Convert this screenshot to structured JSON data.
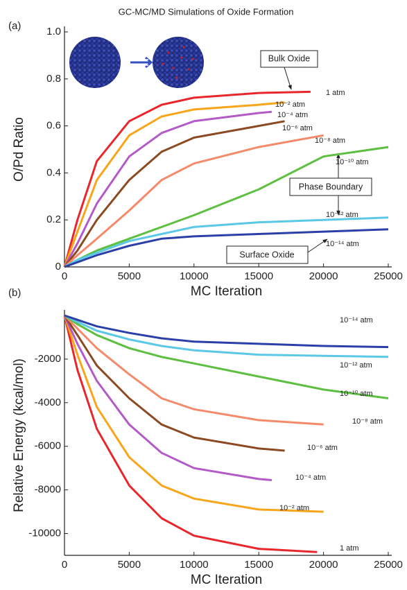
{
  "chart_data": [
    {
      "type": "line",
      "title": "GC-MC/MD Simulations of Oxide Formation",
      "panel_label": "(a)",
      "xlabel": "MC Iteration",
      "ylabel": "O/Pd Ratio",
      "xlim": [
        0,
        25000
      ],
      "xticks": [
        0,
        5000,
        10000,
        15000,
        20000,
        25000
      ],
      "ylim": [
        0,
        1
      ],
      "yticks": [
        0,
        0.2,
        0.4,
        0.6,
        0.8,
        {
          "value": 1,
          "label": "1.0"
        }
      ],
      "annotations": [
        "Bulk Oxide",
        "Phase Boundary",
        "Surface Oxide"
      ],
      "series": [
        {
          "name": "1 atm",
          "color": "#e8262b",
          "x": [
            0,
            1000,
            2500,
            5000,
            7500,
            10000,
            15000,
            19000
          ],
          "values": [
            0,
            0.2,
            0.45,
            0.62,
            0.69,
            0.72,
            0.74,
            0.745
          ]
        },
        {
          "name": "10⁻² atm",
          "color": "#f9a51a",
          "x": [
            0,
            1000,
            2500,
            5000,
            7500,
            10000,
            15000,
            17000
          ],
          "values": [
            0,
            0.15,
            0.37,
            0.56,
            0.64,
            0.67,
            0.69,
            0.7
          ]
        },
        {
          "name": "10⁻⁴ atm",
          "color": "#b45ac8",
          "x": [
            0,
            1000,
            2500,
            5000,
            7500,
            10000,
            15000,
            16000
          ],
          "values": [
            0,
            0.1,
            0.27,
            0.47,
            0.57,
            0.62,
            0.655,
            0.66
          ]
        },
        {
          "name": "10⁻⁶ atm",
          "color": "#8b4a22",
          "x": [
            0,
            1000,
            2500,
            5000,
            7500,
            10000,
            15000,
            17000
          ],
          "values": [
            0,
            0.07,
            0.2,
            0.37,
            0.49,
            0.55,
            0.6,
            0.62
          ]
        },
        {
          "name": "10⁻⁸ atm",
          "color": "#f58a6a",
          "x": [
            0,
            1000,
            2500,
            5000,
            7500,
            10000,
            15000,
            20000
          ],
          "values": [
            0,
            0.05,
            0.12,
            0.24,
            0.37,
            0.44,
            0.51,
            0.56
          ]
        },
        {
          "name": "10⁻¹⁰ atm",
          "color": "#5cbf40",
          "x": [
            0,
            1000,
            2500,
            5000,
            7500,
            10000,
            15000,
            20000,
            25000
          ],
          "values": [
            0,
            0.03,
            0.07,
            0.12,
            0.17,
            0.22,
            0.33,
            0.47,
            0.51
          ]
        },
        {
          "name": "10⁻¹² atm",
          "color": "#5ac8e6",
          "x": [
            0,
            1000,
            2500,
            5000,
            7500,
            10000,
            15000,
            20000,
            25000
          ],
          "values": [
            0,
            0.03,
            0.06,
            0.11,
            0.14,
            0.17,
            0.19,
            0.2,
            0.21
          ]
        },
        {
          "name": "10⁻¹⁴ atm",
          "color": "#2a3fa8",
          "x": [
            0,
            1000,
            2500,
            5000,
            7500,
            10000,
            15000,
            20000,
            25000
          ],
          "values": [
            0,
            0.02,
            0.05,
            0.09,
            0.12,
            0.13,
            0.14,
            0.15,
            0.16
          ]
        }
      ]
    },
    {
      "type": "line",
      "panel_label": "(b)",
      "xlabel": "MC Iteration",
      "ylabel": "Relative Energy (kcal/mol)",
      "xlim": [
        0,
        25000
      ],
      "xticks": [
        0,
        5000,
        10000,
        15000,
        20000,
        25000
      ],
      "ylim": [
        -11000,
        0
      ],
      "yticks": [
        -10000,
        -8000,
        -6000,
        -4000,
        -2000
      ],
      "series": [
        {
          "name": "1 atm",
          "color": "#e8262b",
          "x": [
            0,
            1000,
            2500,
            5000,
            7500,
            10000,
            15000,
            19500
          ],
          "values": [
            0,
            -2500,
            -5200,
            -7800,
            -9300,
            -10100,
            -10700,
            -10850
          ]
        },
        {
          "name": "10⁻² atm",
          "color": "#f9a51a",
          "x": [
            0,
            1000,
            2500,
            5000,
            7500,
            10000,
            15000,
            20000
          ],
          "values": [
            0,
            -1800,
            -4200,
            -6500,
            -7800,
            -8400,
            -8900,
            -9000
          ]
        },
        {
          "name": "10⁻⁴ atm",
          "color": "#b45ac8",
          "x": [
            0,
            1000,
            2500,
            5000,
            7500,
            10000,
            15000,
            16000
          ],
          "values": [
            0,
            -1300,
            -3000,
            -5000,
            -6300,
            -7000,
            -7500,
            -7550
          ]
        },
        {
          "name": "10⁻⁶ atm",
          "color": "#8b4a22",
          "x": [
            0,
            1000,
            2500,
            5000,
            7500,
            10000,
            15000,
            17000
          ],
          "values": [
            0,
            -900,
            -2300,
            -3800,
            -5000,
            -5600,
            -6100,
            -6200
          ]
        },
        {
          "name": "10⁻⁸ atm",
          "color": "#f58a6a",
          "x": [
            0,
            1000,
            2500,
            5000,
            7500,
            10000,
            15000,
            20000
          ],
          "values": [
            0,
            -600,
            -1500,
            -2700,
            -3800,
            -4300,
            -4800,
            -5000
          ]
        },
        {
          "name": "10⁻¹⁰ atm",
          "color": "#5cbf40",
          "x": [
            0,
            1000,
            2500,
            5000,
            7500,
            10000,
            15000,
            20000,
            25000
          ],
          "values": [
            0,
            -400,
            -900,
            -1500,
            -1900,
            -2200,
            -2800,
            -3400,
            -3800
          ]
        },
        {
          "name": "10⁻¹² atm",
          "color": "#5ac8e6",
          "x": [
            0,
            1000,
            2500,
            5000,
            7500,
            10000,
            15000,
            20000,
            25000
          ],
          "values": [
            0,
            -300,
            -700,
            -1100,
            -1400,
            -1600,
            -1800,
            -1850,
            -1900
          ]
        },
        {
          "name": "10⁻¹⁴ atm",
          "color": "#2a3fa8",
          "x": [
            0,
            1000,
            2500,
            5000,
            7500,
            10000,
            15000,
            20000,
            25000
          ],
          "values": [
            0,
            -200,
            -500,
            -800,
            -1050,
            -1200,
            -1300,
            -1400,
            -1450
          ]
        }
      ]
    }
  ]
}
